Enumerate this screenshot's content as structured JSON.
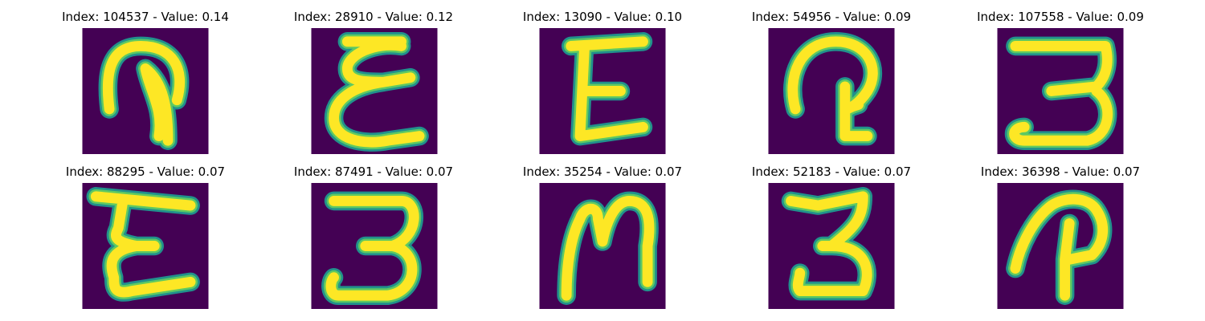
{
  "colors": {
    "background": "#440154",
    "halo": "#21918c",
    "mid": "#5ec962",
    "core": "#fde725"
  },
  "panels": [
    {
      "title": "Index: 104537 - Value: 0.14",
      "glyph": "loop-hook"
    },
    {
      "title": "Index: 28910 - Value: 0.12",
      "glyph": "epsilon-wavy"
    },
    {
      "title": "Index: 13090 - Value: 0.10",
      "glyph": "epsilon-block"
    },
    {
      "title": "Index: 54956 - Value: 0.09",
      "glyph": "loop-hook-small"
    },
    {
      "title": "Index: 107558 - Value: 0.09",
      "glyph": "three-flat"
    },
    {
      "title": "Index: 88295 - Value: 0.07",
      "glyph": "epsilon-block-2"
    },
    {
      "title": "Index: 87491 - Value: 0.07",
      "glyph": "three-round"
    },
    {
      "title": "Index: 35254 - Value: 0.07",
      "glyph": "n-shape"
    },
    {
      "title": "Index: 52183 - Value: 0.07",
      "glyph": "three-narrow"
    },
    {
      "title": "Index: 36398 - Value: 0.07",
      "glyph": "p-shape"
    }
  ]
}
